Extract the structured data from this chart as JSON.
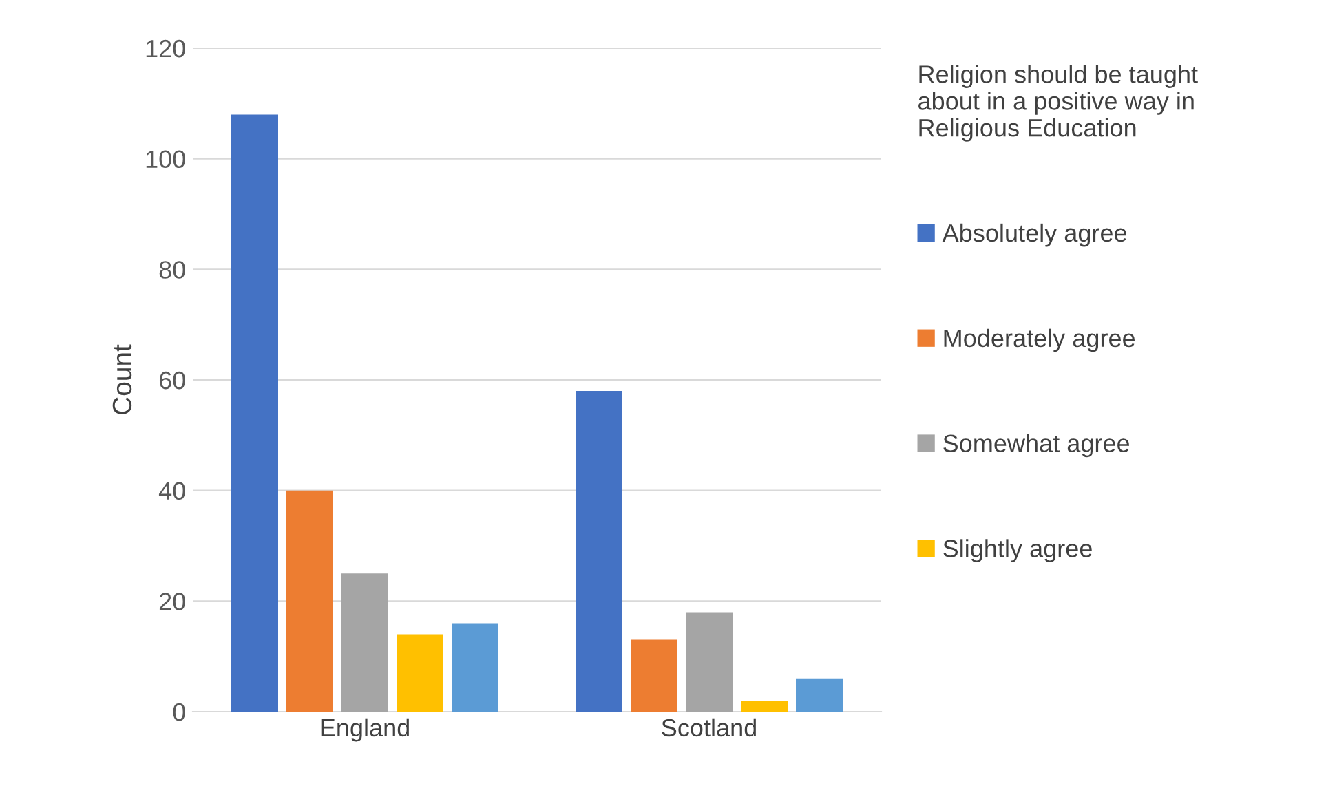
{
  "chart_data": {
    "type": "bar",
    "categories": [
      "England",
      "Scotland"
    ],
    "ylabel": "Count",
    "legend_title": "Religion should be taught\nabout in a positive way in\nReligious Education",
    "series": [
      {
        "name": "Absolutely agree",
        "color": "#4472c4",
        "values": [
          108,
          58
        ]
      },
      {
        "name": "Moderately agree",
        "color": "#ed7d31",
        "values": [
          40,
          13
        ]
      },
      {
        "name": "Somewhat agree",
        "color": "#a5a5a5",
        "values": [
          25,
          18
        ]
      },
      {
        "name": "Slightly agree",
        "color": "#ffc000",
        "values": [
          14,
          2
        ]
      },
      {
        "color": "#5b9bd5",
        "values": [
          16,
          6
        ]
      }
    ],
    "ylim": [
      0,
      120
    ],
    "yticks": [
      0,
      20,
      40,
      60,
      80,
      100,
      120
    ],
    "grid": "y",
    "legend": "right"
  }
}
